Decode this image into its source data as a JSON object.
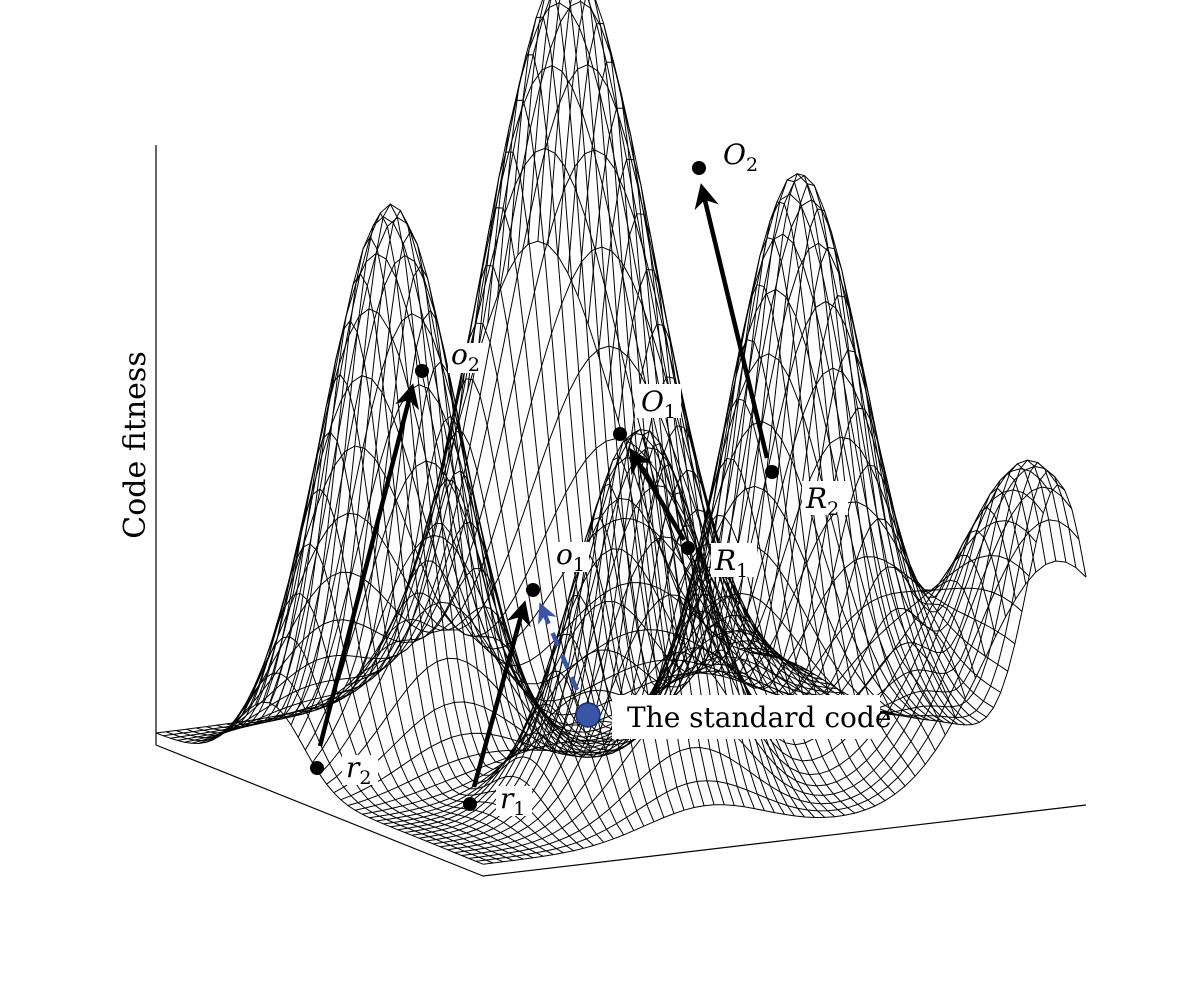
{
  "axis": {
    "z_label": "Code fitness"
  },
  "points": [
    {
      "id": "O2",
      "base": "O",
      "sub": "2",
      "kind": "optimum"
    },
    {
      "id": "o2",
      "base": "o",
      "sub": "2",
      "kind": "optimum"
    },
    {
      "id": "O1",
      "base": "O",
      "sub": "1",
      "kind": "optimum"
    },
    {
      "id": "o1",
      "base": "o",
      "sub": "1",
      "kind": "optimum"
    },
    {
      "id": "R2",
      "base": "R",
      "sub": "2",
      "kind": "start"
    },
    {
      "id": "R1",
      "base": "R",
      "sub": "1",
      "kind": "start"
    },
    {
      "id": "r2",
      "base": "r",
      "sub": "2",
      "kind": "start"
    },
    {
      "id": "r1",
      "base": "r",
      "sub": "1",
      "kind": "start"
    }
  ],
  "standard_code": {
    "label": "The standard code",
    "color": "#3a55a8"
  },
  "colors": {
    "mesh": "#000000",
    "arrow": "#000000",
    "dashed_arrow": "#3a55a8",
    "background": "#ffffff"
  }
}
